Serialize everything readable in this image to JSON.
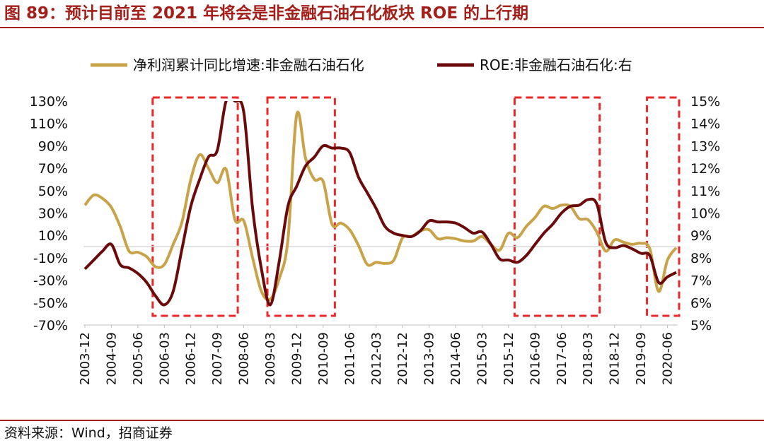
{
  "figure": {
    "title": "图 89：预计目前至 2021 年将会是非金融石油石化板块 ROE 的上行期",
    "source": "资料来源：Wind，招商证券"
  },
  "chart_data": {
    "type": "line",
    "legend_position": "top",
    "grid": false,
    "x_categories": [
      "2003-12",
      "2004-09",
      "2005-06",
      "2006-03",
      "2006-12",
      "2007-09",
      "2008-06",
      "2009-03",
      "2009-12",
      "2010-09",
      "2011-06",
      "2012-03",
      "2012-12",
      "2013-09",
      "2014-06",
      "2015-03",
      "2015-12",
      "2016-09",
      "2017-06",
      "2018-03",
      "2018-12",
      "2019-09",
      "2020-06"
    ],
    "left_axis": {
      "ylim": [
        -70,
        130
      ],
      "ticks": [
        -70,
        -50,
        -30,
        -10,
        10,
        30,
        50,
        70,
        90,
        110,
        130
      ],
      "tick_labels": [
        "-70%",
        "-50%",
        "-30%",
        "-10%",
        "10%",
        "30%",
        "50%",
        "70%",
        "90%",
        "110%",
        "130%"
      ]
    },
    "right_axis": {
      "ylim": [
        5,
        15
      ],
      "ticks": [
        5,
        6,
        7,
        8,
        9,
        10,
        11,
        12,
        13,
        14,
        15
      ],
      "tick_labels": [
        "5%",
        "6%",
        "7%",
        "8%",
        "9%",
        "10%",
        "11%",
        "12%",
        "13%",
        "14%",
        "15%"
      ]
    },
    "series": [
      {
        "name": "净利润累计同比增速:非金融石油石化",
        "axis": "left",
        "color": "#C9A34A",
        "points": [
          [
            "2003-12",
            37
          ],
          [
            "2004-03",
            46
          ],
          [
            "2004-06",
            43
          ],
          [
            "2004-09",
            35
          ],
          [
            "2004-12",
            18
          ],
          [
            "2005-03",
            -4
          ],
          [
            "2005-06",
            -5
          ],
          [
            "2005-09",
            -9
          ],
          [
            "2005-12",
            -18
          ],
          [
            "2006-03",
            -16
          ],
          [
            "2006-06",
            2
          ],
          [
            "2006-09",
            22
          ],
          [
            "2006-12",
            60
          ],
          [
            "2007-03",
            82
          ],
          [
            "2007-06",
            70
          ],
          [
            "2007-09",
            57
          ],
          [
            "2007-12",
            69
          ],
          [
            "2008-03",
            24
          ],
          [
            "2008-06",
            23
          ],
          [
            "2008-09",
            -10
          ],
          [
            "2008-12",
            -40
          ],
          [
            "2009-03",
            -47
          ],
          [
            "2009-06",
            -29
          ],
          [
            "2009-09",
            6
          ],
          [
            "2009-12",
            118
          ],
          [
            "2010-03",
            79
          ],
          [
            "2010-06",
            60
          ],
          [
            "2010-09",
            58
          ],
          [
            "2010-12",
            20
          ],
          [
            "2011-03",
            21
          ],
          [
            "2011-06",
            15
          ],
          [
            "2011-09",
            1
          ],
          [
            "2011-12",
            -16
          ],
          [
            "2012-03",
            -14
          ],
          [
            "2012-06",
            -15
          ],
          [
            "2012-09",
            -12
          ],
          [
            "2012-12",
            8
          ],
          [
            "2013-03",
            9
          ],
          [
            "2013-06",
            14
          ],
          [
            "2013-09",
            15
          ],
          [
            "2013-12",
            7
          ],
          [
            "2014-03",
            8
          ],
          [
            "2014-06",
            7
          ],
          [
            "2014-09",
            5
          ],
          [
            "2014-12",
            5
          ],
          [
            "2015-03",
            9
          ],
          [
            "2015-06",
            2
          ],
          [
            "2015-09",
            -3
          ],
          [
            "2015-12",
            12
          ],
          [
            "2016-03",
            8
          ],
          [
            "2016-06",
            18
          ],
          [
            "2016-09",
            26
          ],
          [
            "2016-12",
            36
          ],
          [
            "2017-03",
            34
          ],
          [
            "2017-06",
            37
          ],
          [
            "2017-09",
            36
          ],
          [
            "2017-12",
            25
          ],
          [
            "2018-03",
            24
          ],
          [
            "2018-06",
            13
          ],
          [
            "2018-09",
            -4
          ],
          [
            "2018-12",
            6
          ],
          [
            "2019-03",
            4
          ],
          [
            "2019-06",
            2
          ],
          [
            "2019-09",
            3
          ],
          [
            "2019-12",
            -2
          ],
          [
            "2020-03",
            -40
          ],
          [
            "2020-06",
            -12
          ],
          [
            "2020-09",
            -1
          ]
        ]
      },
      {
        "name": "ROE:非金融石油石化:右",
        "axis": "right",
        "color": "#6B0A0A",
        "points": [
          [
            "2003-12",
            7.5
          ],
          [
            "2004-03",
            7.9
          ],
          [
            "2004-06",
            8.3
          ],
          [
            "2004-09",
            8.6
          ],
          [
            "2004-12",
            7.7
          ],
          [
            "2005-03",
            7.55
          ],
          [
            "2005-06",
            7.3
          ],
          [
            "2005-09",
            6.9
          ],
          [
            "2005-12",
            6.3
          ],
          [
            "2006-03",
            5.9
          ],
          [
            "2006-06",
            6.5
          ],
          [
            "2006-09",
            8.4
          ],
          [
            "2006-12",
            10.3
          ],
          [
            "2007-03",
            11.5
          ],
          [
            "2007-06",
            12.5
          ],
          [
            "2007-09",
            12.8
          ],
          [
            "2007-12",
            15.0
          ],
          [
            "2008-03",
            15.0
          ],
          [
            "2008-06",
            14.5
          ],
          [
            "2008-09",
            10.2
          ],
          [
            "2008-12",
            7.5
          ],
          [
            "2009-03",
            5.9
          ],
          [
            "2009-06",
            7.8
          ],
          [
            "2009-09",
            10.3
          ],
          [
            "2009-12",
            11.2
          ],
          [
            "2010-03",
            12.1
          ],
          [
            "2010-06",
            12.5
          ],
          [
            "2010-09",
            13.0
          ],
          [
            "2010-12",
            12.9
          ],
          [
            "2011-03",
            12.9
          ],
          [
            "2011-06",
            12.7
          ],
          [
            "2011-09",
            11.6
          ],
          [
            "2011-12",
            10.9
          ],
          [
            "2012-03",
            10.2
          ],
          [
            "2012-06",
            9.4
          ],
          [
            "2012-09",
            9.1
          ],
          [
            "2012-12",
            9.0
          ],
          [
            "2013-03",
            8.95
          ],
          [
            "2013-06",
            9.2
          ],
          [
            "2013-09",
            9.65
          ],
          [
            "2013-12",
            9.6
          ],
          [
            "2014-03",
            9.6
          ],
          [
            "2014-06",
            9.55
          ],
          [
            "2014-09",
            9.35
          ],
          [
            "2014-12",
            9.1
          ],
          [
            "2015-03",
            9.15
          ],
          [
            "2015-06",
            8.6
          ],
          [
            "2015-09",
            7.95
          ],
          [
            "2015-12",
            7.9
          ],
          [
            "2016-03",
            7.8
          ],
          [
            "2016-06",
            8.1
          ],
          [
            "2016-09",
            8.6
          ],
          [
            "2016-12",
            9.1
          ],
          [
            "2017-03",
            9.5
          ],
          [
            "2017-06",
            10.0
          ],
          [
            "2017-09",
            10.3
          ],
          [
            "2017-12",
            10.35
          ],
          [
            "2018-03",
            10.6
          ],
          [
            "2018-06",
            10.4
          ],
          [
            "2018-09",
            8.7
          ],
          [
            "2018-12",
            8.45
          ],
          [
            "2019-03",
            8.55
          ],
          [
            "2019-06",
            8.4
          ],
          [
            "2019-09",
            8.2
          ],
          [
            "2019-12",
            8.1
          ],
          [
            "2020-03",
            6.9
          ],
          [
            "2020-06",
            7.15
          ],
          [
            "2020-09",
            7.35
          ]
        ]
      }
    ],
    "annotations": [
      {
        "type": "dashed-box",
        "from": "2005-12",
        "to": "2008-03",
        "color": "#E8292B"
      },
      {
        "type": "dashed-box",
        "from": "2009-03",
        "to": "2010-12",
        "color": "#E8292B"
      },
      {
        "type": "dashed-box",
        "from": "2016-03",
        "to": "2018-06",
        "color": "#E8292B"
      },
      {
        "type": "dashed-box",
        "from": "2019-12",
        "to": "2020-09",
        "color": "#E8292B"
      }
    ]
  }
}
